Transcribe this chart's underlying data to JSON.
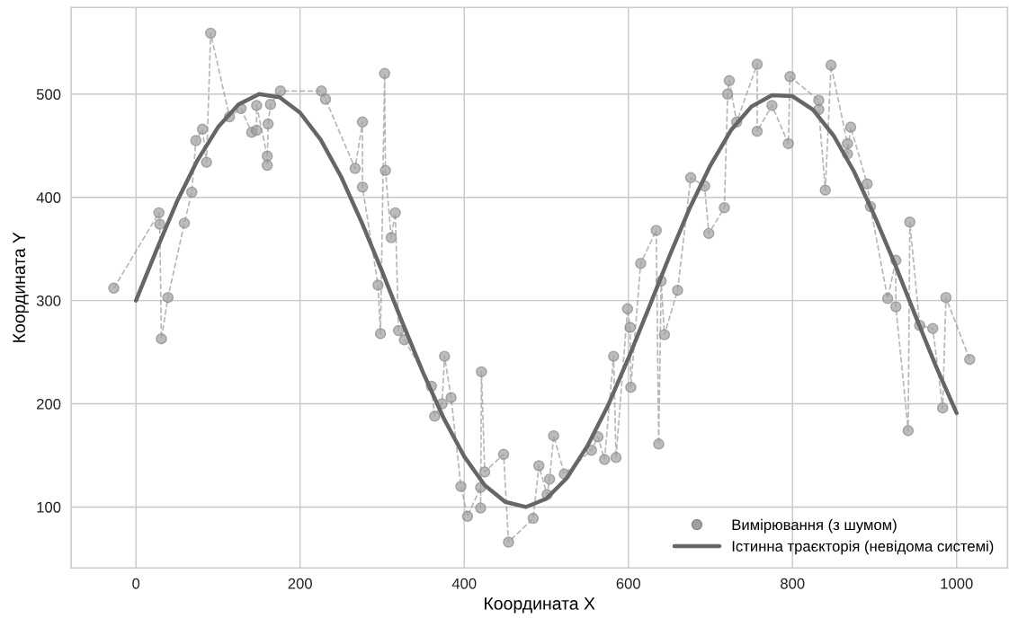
{
  "chart_data": {
    "type": "line",
    "xlabel": "Координата X",
    "ylabel": "Координата Y",
    "xlim": [
      -79,
      1062
    ],
    "ylim": [
      41,
      584
    ],
    "xticks": [
      0,
      200,
      400,
      600,
      800,
      1000
    ],
    "yticks": [
      100,
      200,
      300,
      400,
      500
    ],
    "grid": true,
    "legend": "bottom right",
    "series": [
      {
        "name": "Вимірювання (з шумом)",
        "marker": "circle",
        "line_style": "dashed",
        "color": "#999999",
        "x": [
          -27,
          28,
          29,
          31,
          39,
          59,
          68,
          73,
          81,
          86,
          91,
          114,
          128,
          141,
          147,
          147,
          160,
          160,
          161,
          164,
          176,
          226,
          231,
          267,
          276,
          276,
          295,
          298,
          303,
          304,
          311,
          316,
          320,
          327,
          360,
          364,
          373,
          376,
          384,
          396,
          404,
          420,
          420,
          421,
          425,
          448,
          454,
          484,
          491,
          501,
          504,
          509,
          522,
          555,
          563,
          571,
          582,
          585,
          599,
          602,
          603,
          615,
          634,
          637,
          640,
          644,
          660,
          676,
          693,
          698,
          717,
          721,
          723,
          732,
          757,
          757,
          775,
          795,
          797,
          832,
          832,
          840,
          847,
          867,
          867,
          871,
          891,
          895,
          916,
          926,
          926,
          941,
          943,
          955,
          971,
          983,
          987,
          1016
        ],
        "values": [
          312,
          385,
          374,
          263,
          303,
          375,
          405,
          455,
          466,
          434,
          559,
          478,
          486,
          463,
          465,
          489,
          440,
          431,
          471,
          490,
          503,
          503,
          495,
          428,
          473,
          410,
          315,
          268,
          520,
          426,
          361,
          385,
          271,
          262,
          217,
          188,
          200,
          246,
          206,
          120,
          91,
          119,
          99,
          231,
          134,
          151,
          66,
          89,
          140,
          112,
          127,
          169,
          132,
          155,
          168,
          146,
          246,
          148,
          292,
          274,
          216,
          336,
          368,
          161,
          319,
          267,
          310,
          419,
          411,
          365,
          390,
          500,
          513,
          473,
          529,
          464,
          489,
          452,
          517,
          494,
          485,
          407,
          528,
          452,
          442,
          468,
          413,
          391,
          302,
          339,
          294,
          174,
          376,
          276,
          273,
          196,
          303,
          243
        ]
      },
      {
        "name": "Істинна траєкторія (невідома системі)",
        "marker": "none",
        "line_style": "solid",
        "color": "#666666",
        "x": [
          0,
          25,
          50,
          75,
          100,
          125,
          150,
          175,
          200,
          225,
          250,
          275,
          300,
          325,
          350,
          375,
          400,
          425,
          450,
          475,
          500,
          525,
          550,
          575,
          600,
          625,
          650,
          675,
          700,
          725,
          750,
          775,
          800,
          825,
          850,
          875,
          900,
          925,
          950,
          975,
          1000
        ],
        "values": [
          300,
          349,
          396,
          436,
          468,
          490,
          500,
          497,
          482,
          456,
          420,
          376,
          328,
          278,
          230,
          186,
          149,
          121,
          105,
          100,
          108,
          128,
          159,
          198,
          244,
          293,
          343,
          390,
          431,
          465,
          488,
          499,
          498,
          485,
          460,
          425,
          382,
          335,
          285,
          236,
          191
        ]
      }
    ]
  }
}
